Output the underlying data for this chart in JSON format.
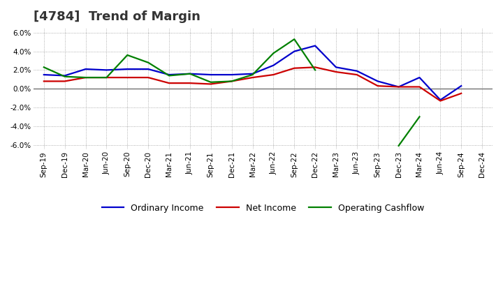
{
  "title": "[4784]  Trend of Margin",
  "x_labels": [
    "Sep-19",
    "Dec-19",
    "Mar-20",
    "Jun-20",
    "Sep-20",
    "Dec-20",
    "Mar-21",
    "Jun-21",
    "Sep-21",
    "Dec-21",
    "Mar-22",
    "Jun-22",
    "Sep-22",
    "Dec-22",
    "Mar-23",
    "Jun-23",
    "Sep-23",
    "Dec-23",
    "Mar-24",
    "Jun-24",
    "Sep-24",
    "Dec-24"
  ],
  "ordinary_income": [
    1.5,
    1.4,
    2.1,
    2.0,
    2.1,
    2.1,
    1.5,
    1.6,
    1.5,
    1.5,
    1.6,
    2.5,
    4.0,
    4.6,
    2.3,
    1.9,
    0.8,
    0.2,
    1.2,
    -1.2,
    0.3,
    null
  ],
  "net_income": [
    0.8,
    0.8,
    1.2,
    1.2,
    1.2,
    1.2,
    0.6,
    0.6,
    0.5,
    0.8,
    1.2,
    1.5,
    2.2,
    2.3,
    1.8,
    1.5,
    0.3,
    0.2,
    0.2,
    -1.3,
    -0.5,
    null
  ],
  "operating_cashflow": [
    2.3,
    1.3,
    1.2,
    1.2,
    3.6,
    2.8,
    1.4,
    1.6,
    0.7,
    0.8,
    1.5,
    3.8,
    5.3,
    2.0,
    null,
    null,
    null,
    -6.1,
    -3.0,
    null,
    null,
    null
  ],
  "ylim": [
    -6.5,
    6.5
  ],
  "yticks": [
    -6.0,
    -4.0,
    -2.0,
    0.0,
    2.0,
    4.0,
    6.0
  ],
  "colors": {
    "ordinary_income": "#0000cc",
    "net_income": "#cc0000",
    "operating_cashflow": "#008000"
  },
  "legend_labels": [
    "Ordinary Income",
    "Net Income",
    "Operating Cashflow"
  ],
  "background_color": "#ffffff",
  "grid_color": "#999999",
  "title_fontsize": 13,
  "tick_fontsize": 7.5,
  "legend_fontsize": 9
}
